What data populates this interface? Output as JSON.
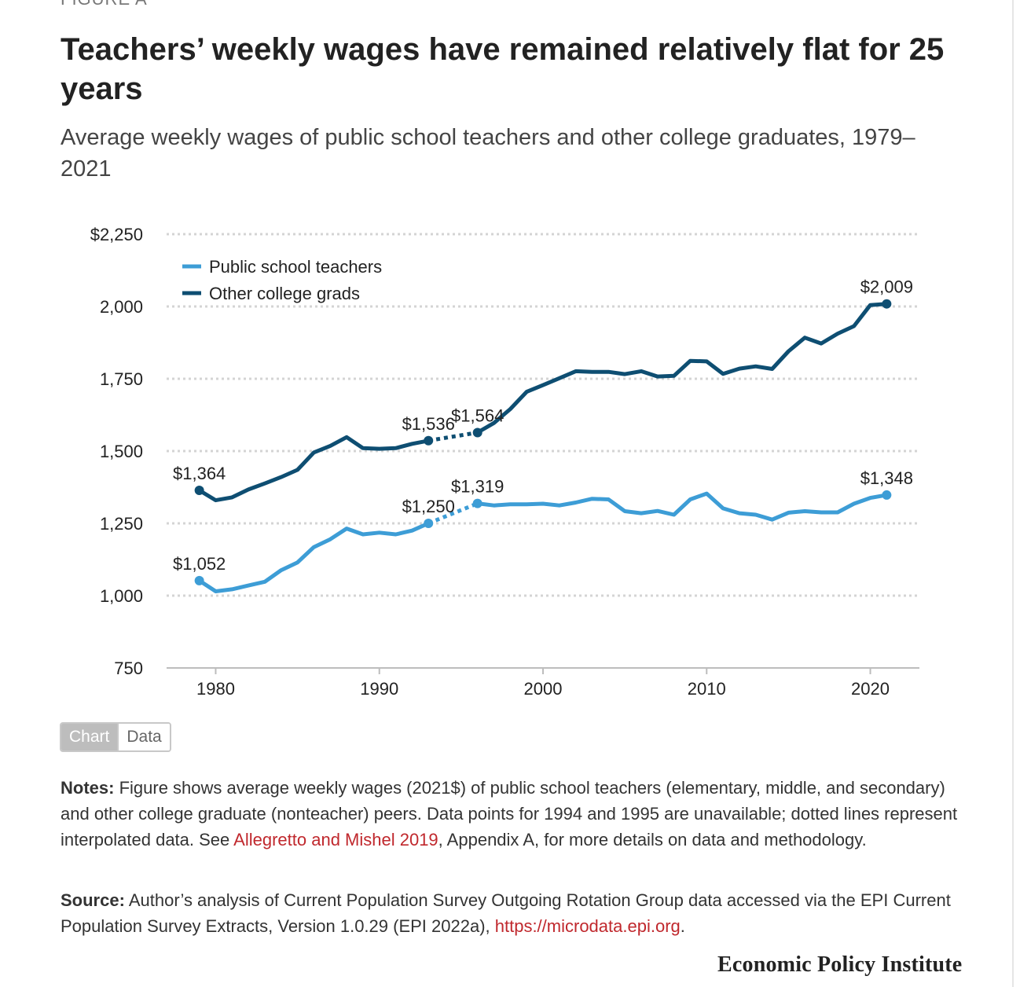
{
  "figure_label": "FIGURE A",
  "title": "Teachers’ weekly wages have remained relatively flat for 25 years",
  "subtitle": "Average weekly wages of public school teachers and other college graduates, 1979–2021",
  "toggle": {
    "chart_label": "Chart",
    "data_label": "Data",
    "active": "Chart"
  },
  "notes": {
    "label": "Notes:",
    "text_before": " Figure shows average weekly wages (2021$) of public school teachers (elementary, middle, and secondary) and other college graduate (nonteacher) peers. Data points for 1994 and 1995 are unavailable; dotted lines represent interpolated data. See ",
    "link_text": "Allegretto and Mishel 2019",
    "text_after": ", Appendix A, for more details on data and methodology."
  },
  "source": {
    "label": "Source:",
    "text_before": " Author’s analysis of Current Population Survey Outgoing Rotation Group data accessed via the EPI Current Population Survey Extracts, Version 1.0.29 (EPI 2022a), ",
    "link_text": "https://microdata.epi.org",
    "text_after": "."
  },
  "brand": "Economic Policy Institute",
  "colors": {
    "teachers": "#3d9dd6",
    "college": "#0e4e72",
    "grid": "#d4d4d4",
    "link": "#c0282d"
  },
  "chart_data": {
    "type": "line",
    "title": "Teachers’ weekly wages have remained relatively flat for 25 years",
    "xlabel": "",
    "ylabel": "",
    "xlim": [
      1977,
      2023
    ],
    "ylim": [
      750,
      2250
    ],
    "x_ticks": [
      1980,
      1990,
      2000,
      2010,
      2020
    ],
    "y_ticks": [
      750,
      1000,
      1250,
      1500,
      1750,
      2000,
      2250
    ],
    "y_tick_labels": [
      "750",
      "1,000",
      "1,250",
      "1,500",
      "1,750",
      "2,000",
      "$2,250"
    ],
    "grid": "horizontal dotted",
    "legend_position": "top-left",
    "gap": {
      "from": 1993,
      "to": 1996,
      "style": "dotted",
      "note": "1994 and 1995 unavailable"
    },
    "series": [
      {
        "name": "Public school teachers",
        "color": "#3d9dd6",
        "x": [
          1979,
          1980,
          1981,
          1982,
          1983,
          1984,
          1985,
          1986,
          1987,
          1988,
          1989,
          1990,
          1991,
          1992,
          1993,
          1996,
          1997,
          1998,
          1999,
          2000,
          2001,
          2002,
          2003,
          2004,
          2005,
          2006,
          2007,
          2008,
          2009,
          2010,
          2011,
          2012,
          2013,
          2014,
          2015,
          2016,
          2017,
          2018,
          2019,
          2020,
          2021
        ],
        "y": [
          1052,
          1015,
          1022,
          1035,
          1048,
          1088,
          1115,
          1168,
          1195,
          1232,
          1212,
          1218,
          1212,
          1225,
          1250,
          1319,
          1312,
          1316,
          1316,
          1318,
          1312,
          1322,
          1335,
          1333,
          1292,
          1285,
          1293,
          1280,
          1333,
          1353,
          1302,
          1285,
          1280,
          1263,
          1287,
          1292,
          1288,
          1288,
          1318,
          1338,
          1348
        ],
        "labels": [
          {
            "x": 1979,
            "y": 1052,
            "text": "$1,052"
          },
          {
            "x": 1993,
            "y": 1250,
            "text": "$1,250"
          },
          {
            "x": 1996,
            "y": 1319,
            "text": "$1,319"
          },
          {
            "x": 2021,
            "y": 1348,
            "text": "$1,348"
          }
        ]
      },
      {
        "name": "Other college grads",
        "color": "#0e4e72",
        "x": [
          1979,
          1980,
          1981,
          1982,
          1983,
          1984,
          1985,
          1986,
          1987,
          1988,
          1989,
          1990,
          1991,
          1992,
          1993,
          1996,
          1997,
          1998,
          1999,
          2000,
          2001,
          2002,
          2003,
          2004,
          2005,
          2006,
          2007,
          2008,
          2009,
          2010,
          2011,
          2012,
          2013,
          2014,
          2015,
          2016,
          2017,
          2018,
          2019,
          2020,
          2021
        ],
        "y": [
          1364,
          1330,
          1340,
          1367,
          1388,
          1410,
          1435,
          1495,
          1518,
          1548,
          1510,
          1508,
          1510,
          1525,
          1536,
          1564,
          1597,
          1645,
          1705,
          1728,
          1752,
          1776,
          1774,
          1774,
          1766,
          1776,
          1758,
          1760,
          1812,
          1810,
          1767,
          1785,
          1793,
          1784,
          1845,
          1892,
          1872,
          1906,
          1932,
          2005,
          2009
        ],
        "labels": [
          {
            "x": 1979,
            "y": 1364,
            "text": "$1,364"
          },
          {
            "x": 1993,
            "y": 1536,
            "text": "$1,536"
          },
          {
            "x": 1996,
            "y": 1564,
            "text": "$1,564"
          },
          {
            "x": 2021,
            "y": 2009,
            "text": "$2,009"
          }
        ]
      }
    ]
  }
}
